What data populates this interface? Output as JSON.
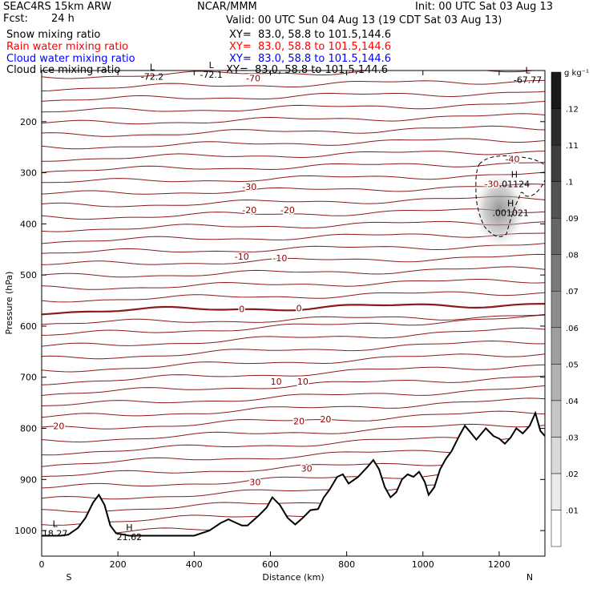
{
  "header": {
    "model": "SEAC4RS 15km ARW",
    "fcst_label": "Fcst:",
    "fcst_value": "24 h",
    "center": "NCAR/MMM",
    "init": "Init: 00 UTC Sat 03 Aug 13",
    "valid": "Valid: 00 UTC Sun 04 Aug 13 (19 CDT Sat 03 Aug 13)"
  },
  "fields": [
    {
      "name": "Snow mixing ratio",
      "xy": "XY=  83.0, 58.8 to 101.5,144.6",
      "color": "#000000"
    },
    {
      "name": "Rain water mixing ratio",
      "xy": "XY=  83.0, 58.8 to 101.5,144.6",
      "color": "#ff0000"
    },
    {
      "name": "Cloud water mixing ratio",
      "xy": "XY=  83.0, 58.8 to 101.5,144.6",
      "color": "#0000ff"
    },
    {
      "name": "Cloud ice mixing ratio",
      "xy": "XY=  83.0, 58.8 to 101.5,144.6",
      "color": "#000000"
    }
  ],
  "chart_data": {
    "type": "cross-section",
    "xlabel": "Distance (km)",
    "ylabel": "Pressure (hPa)",
    "x_ticks": [
      0,
      200,
      400,
      600,
      800,
      1000,
      1200
    ],
    "x_tick_labels": [
      "0",
      "200",
      "400",
      "600",
      "800",
      "1000",
      "1200"
    ],
    "xlim": [
      0,
      1320
    ],
    "y_ticks": [
      200,
      300,
      400,
      500,
      600,
      700,
      800,
      900,
      1000
    ],
    "y_tick_labels": [
      "200",
      "300",
      "400",
      "500",
      "600",
      "700",
      "800",
      "900",
      "1000"
    ],
    "ylim": [
      1050,
      100
    ],
    "ends": {
      "left": "S",
      "right": "N"
    },
    "colorbar": {
      "units": "g kg⁻¹",
      "ticks": [
        ".01",
        ".02",
        ".03",
        ".04",
        ".05",
        ".06",
        ".07",
        ".08",
        ".09",
        ".1",
        ".11",
        ".12"
      ],
      "max": 0.13
    },
    "temperature_contours": [
      {
        "level": -70,
        "label": "-70",
        "x_km": 555,
        "p": 115
      },
      {
        "level": -30,
        "label": "-30",
        "x_km": 545,
        "p": 327
      },
      {
        "level": -20,
        "label": "-20",
        "x_km": 545,
        "p": 373
      },
      {
        "level": -20,
        "label": "-20",
        "x_km": 645,
        "p": 373
      },
      {
        "level": -10,
        "label": "-10",
        "x_km": 525,
        "p": 464
      },
      {
        "level": -10,
        "label": "-10",
        "x_km": 625,
        "p": 467
      },
      {
        "level": 0,
        "label": "0",
        "x_km": 525,
        "p": 566
      },
      {
        "level": 0,
        "label": "0",
        "x_km": 675,
        "p": 565
      },
      {
        "level": 10,
        "label": "10",
        "x_km": 615,
        "p": 708
      },
      {
        "level": 10,
        "label": "10",
        "x_km": 685,
        "p": 708
      },
      {
        "level": 20,
        "label": "20",
        "x_km": 45,
        "p": 795
      },
      {
        "level": 20,
        "label": "20",
        "x_km": 675,
        "p": 786
      },
      {
        "level": 20,
        "label": "20",
        "x_km": 745,
        "p": 782
      },
      {
        "level": 30,
        "label": "30",
        "x_km": 560,
        "p": 905
      },
      {
        "level": 30,
        "label": "30",
        "x_km": 695,
        "p": 878
      },
      {
        "level": -40,
        "label": "-40",
        "x_km": 1235,
        "p": 273
      },
      {
        "level": -30,
        "label": "-30",
        "x_km": 1180,
        "p": 322
      }
    ],
    "extrema": [
      {
        "kind": "L",
        "value": "-72.2",
        "x_km": 290,
        "p": 112,
        "color": "#8b0000"
      },
      {
        "kind": "L",
        "value": "-72.1",
        "x_km": 445,
        "p": 108,
        "color": "#8b0000"
      },
      {
        "kind": "L",
        "value": "-67.77",
        "x_km": 1275,
        "p": 118,
        "color": "#8b0000"
      },
      {
        "kind": "L",
        "value": "18.27",
        "x_km": 35,
        "p": 1005,
        "color": "#8b0000"
      },
      {
        "kind": "H",
        "value": "21.62",
        "x_km": 230,
        "p": 1012,
        "color": "#8b0000"
      },
      {
        "kind": "H",
        "value": ".01124",
        "x_km": 1240,
        "p": 322,
        "color": "#000000"
      },
      {
        "kind": "H",
        "value": ".001021",
        "x_km": 1230,
        "p": 378,
        "color": "#0000ff"
      }
    ],
    "terrain_km_p": [
      [
        0,
        1010
      ],
      [
        50,
        1010
      ],
      [
        70,
        1008
      ],
      [
        95,
        995
      ],
      [
        115,
        975
      ],
      [
        135,
        945
      ],
      [
        150,
        930
      ],
      [
        165,
        950
      ],
      [
        180,
        990
      ],
      [
        195,
        1005
      ],
      [
        230,
        1010
      ],
      [
        300,
        1010
      ],
      [
        400,
        1010
      ],
      [
        440,
        1000
      ],
      [
        470,
        985
      ],
      [
        490,
        978
      ],
      [
        510,
        985
      ],
      [
        525,
        990
      ],
      [
        540,
        990
      ],
      [
        570,
        970
      ],
      [
        590,
        955
      ],
      [
        605,
        935
      ],
      [
        625,
        950
      ],
      [
        645,
        975
      ],
      [
        665,
        988
      ],
      [
        685,
        975
      ],
      [
        705,
        960
      ],
      [
        725,
        958
      ],
      [
        740,
        935
      ],
      [
        755,
        920
      ],
      [
        775,
        895
      ],
      [
        790,
        890
      ],
      [
        805,
        908
      ],
      [
        830,
        895
      ],
      [
        855,
        875
      ],
      [
        870,
        862
      ],
      [
        885,
        880
      ],
      [
        900,
        915
      ],
      [
        915,
        935
      ],
      [
        930,
        925
      ],
      [
        945,
        900
      ],
      [
        960,
        890
      ],
      [
        975,
        895
      ],
      [
        990,
        885
      ],
      [
        1005,
        905
      ],
      [
        1015,
        930
      ],
      [
        1030,
        915
      ],
      [
        1045,
        880
      ],
      [
        1060,
        860
      ],
      [
        1075,
        845
      ],
      [
        1095,
        815
      ],
      [
        1110,
        795
      ],
      [
        1125,
        808
      ],
      [
        1140,
        822
      ],
      [
        1165,
        800
      ],
      [
        1185,
        815
      ],
      [
        1200,
        820
      ],
      [
        1215,
        830
      ],
      [
        1230,
        818
      ],
      [
        1245,
        800
      ],
      [
        1262,
        810
      ],
      [
        1280,
        795
      ],
      [
        1295,
        770
      ],
      [
        1308,
        805
      ],
      [
        1320,
        815
      ]
    ],
    "cloud_ice": {
      "x_km": 1225,
      "p": 380,
      "max_gkg": 0.06
    }
  }
}
